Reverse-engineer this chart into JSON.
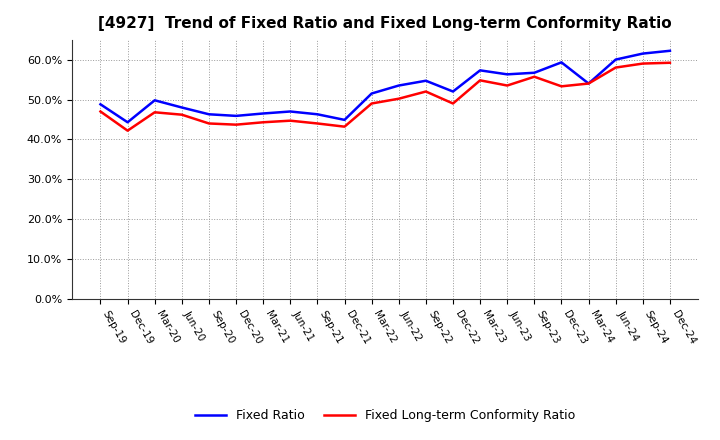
{
  "title": "[4927]  Trend of Fixed Ratio and Fixed Long-term Conformity Ratio",
  "x_labels": [
    "Sep-19",
    "Dec-19",
    "Mar-20",
    "Jun-20",
    "Sep-20",
    "Dec-20",
    "Mar-21",
    "Jun-21",
    "Sep-21",
    "Dec-21",
    "Mar-22",
    "Jun-22",
    "Sep-22",
    "Dec-22",
    "Mar-23",
    "Jun-23",
    "Sep-23",
    "Dec-23",
    "Mar-24",
    "Jun-24",
    "Sep-24",
    "Dec-24"
  ],
  "fixed_ratio": [
    0.488,
    0.443,
    0.498,
    0.48,
    0.463,
    0.459,
    0.465,
    0.47,
    0.463,
    0.449,
    0.515,
    0.535,
    0.547,
    0.52,
    0.573,
    0.563,
    0.567,
    0.593,
    0.54,
    0.6,
    0.615,
    0.622
  ],
  "fixed_lt_ratio": [
    0.47,
    0.422,
    0.468,
    0.462,
    0.44,
    0.437,
    0.443,
    0.447,
    0.44,
    0.432,
    0.49,
    0.502,
    0.52,
    0.49,
    0.548,
    0.535,
    0.557,
    0.533,
    0.54,
    0.58,
    0.59,
    0.592
  ],
  "fixed_ratio_color": "#0000FF",
  "fixed_lt_ratio_color": "#FF0000",
  "ylim": [
    0.0,
    0.65
  ],
  "yticks": [
    0.0,
    0.1,
    0.2,
    0.3,
    0.4,
    0.5,
    0.6
  ],
  "legend_fixed": "Fixed Ratio",
  "legend_lt": "Fixed Long-term Conformity Ratio",
  "bg_color": "#FFFFFF",
  "grid_color": "#999999"
}
